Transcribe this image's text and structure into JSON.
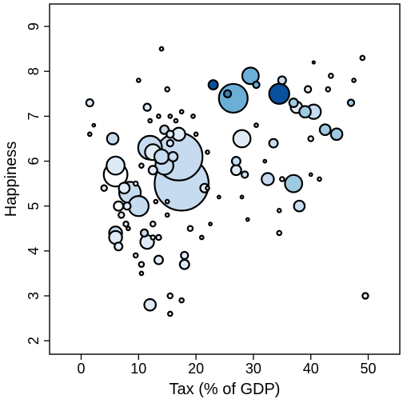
{
  "chart_data": {
    "type": "scatter",
    "title": "",
    "xlabel": "Tax (% of GDP)",
    "ylabel": "Happiness",
    "xlim": [
      -5.5,
      55.5
    ],
    "ylim": [
      1.7,
      9.5
    ],
    "xticks": [
      0,
      10,
      20,
      30,
      40,
      50
    ],
    "yticks": [
      2,
      3,
      4,
      5,
      6,
      7,
      8,
      9
    ],
    "grid": false,
    "legend": "none",
    "size_encoding": "bubble area",
    "color_scale": [
      "#deebf7",
      "#c6dbef",
      "#9ecae1",
      "#6baed6",
      "#3182bd",
      "#08519c"
    ],
    "points": [
      {
        "x": 1.5,
        "y": 7.3,
        "size": 1.0,
        "color": "#deebf7"
      },
      {
        "x": 1.5,
        "y": 6.6,
        "size": 0.5,
        "color": "#c6dbef"
      },
      {
        "x": 2.2,
        "y": 6.8,
        "size": 0.4,
        "color": "#deebf7"
      },
      {
        "x": 5.5,
        "y": 6.5,
        "size": 1.6,
        "color": "#c6dbef"
      },
      {
        "x": 6.0,
        "y": 5.9,
        "size": 2.5,
        "color": "#deebf7"
      },
      {
        "x": 6.0,
        "y": 5.7,
        "size": 3.3,
        "color": "#ffffff"
      },
      {
        "x": 4.0,
        "y": 5.4,
        "size": 0.8,
        "color": "#deebf7"
      },
      {
        "x": 6.5,
        "y": 5.0,
        "size": 1.3,
        "color": "#ffffff"
      },
      {
        "x": 7.0,
        "y": 4.8,
        "size": 0.8,
        "color": "#deebf7"
      },
      {
        "x": 6.0,
        "y": 4.4,
        "size": 1.8,
        "color": "#c6dbef"
      },
      {
        "x": 6.0,
        "y": 4.3,
        "size": 1.8,
        "color": "#deebf7"
      },
      {
        "x": 6.5,
        "y": 4.1,
        "size": 1.1,
        "color": "#deebf7"
      },
      {
        "x": 7.5,
        "y": 5.4,
        "size": 1.5,
        "color": "#deebf7"
      },
      {
        "x": 8.5,
        "y": 5.3,
        "size": 3.0,
        "color": "#c6dbef"
      },
      {
        "x": 8.0,
        "y": 5.0,
        "size": 1.0,
        "color": "#deebf7"
      },
      {
        "x": 7.8,
        "y": 4.6,
        "size": 0.7,
        "color": "#deebf7"
      },
      {
        "x": 8.2,
        "y": 4.5,
        "size": 0.5,
        "color": "#c6dbef"
      },
      {
        "x": 10.0,
        "y": 5.0,
        "size": 2.8,
        "color": "#c6dbef"
      },
      {
        "x": 9.5,
        "y": 3.9,
        "size": 0.6,
        "color": "#c6dbef"
      },
      {
        "x": 10.5,
        "y": 3.7,
        "size": 0.7,
        "color": "#deebf7"
      },
      {
        "x": 10.5,
        "y": 3.5,
        "size": 0.5,
        "color": "#deebf7"
      },
      {
        "x": 11.0,
        "y": 4.4,
        "size": 1.0,
        "color": "#c6dbef"
      },
      {
        "x": 11.5,
        "y": 4.2,
        "size": 1.9,
        "color": "#deebf7"
      },
      {
        "x": 12.0,
        "y": 2.8,
        "size": 1.6,
        "color": "#deebf7"
      },
      {
        "x": 12.0,
        "y": 6.3,
        "size": 3.3,
        "color": "#c6dbef"
      },
      {
        "x": 12.5,
        "y": 6.2,
        "size": 2.2,
        "color": "#deebf7"
      },
      {
        "x": 12.5,
        "y": 5.8,
        "size": 1.2,
        "color": "#deebf7"
      },
      {
        "x": 12.5,
        "y": 4.6,
        "size": 0.7,
        "color": "#deebf7"
      },
      {
        "x": 12.5,
        "y": 4.3,
        "size": 0.6,
        "color": "#deebf7"
      },
      {
        "x": 13.5,
        "y": 3.8,
        "size": 1.2,
        "color": "#deebf7"
      },
      {
        "x": 13.5,
        "y": 4.3,
        "size": 0.7,
        "color": "#deebf7"
      },
      {
        "x": 14.0,
        "y": 6.1,
        "size": 2.0,
        "color": "#c6dbef"
      },
      {
        "x": 14.5,
        "y": 5.9,
        "size": 2.5,
        "color": "#c6dbef"
      },
      {
        "x": 14.5,
        "y": 6.7,
        "size": 1.2,
        "color": "#c6dbef"
      },
      {
        "x": 15.5,
        "y": 6.6,
        "size": 1.0,
        "color": "#deebf7"
      },
      {
        "x": 15.5,
        "y": 6.4,
        "size": 0.9,
        "color": "#deebf7"
      },
      {
        "x": 15.0,
        "y": 5.1,
        "size": 0.5,
        "color": "#deebf7"
      },
      {
        "x": 15.0,
        "y": 4.8,
        "size": 0.5,
        "color": "#c6dbef"
      },
      {
        "x": 15.5,
        "y": 3.0,
        "size": 0.7,
        "color": "#deebf7"
      },
      {
        "x": 15.5,
        "y": 2.6,
        "size": 0.6,
        "color": "#deebf7"
      },
      {
        "x": 17.0,
        "y": 6.1,
        "size": 6.6,
        "color": "#c6dbef"
      },
      {
        "x": 17.5,
        "y": 5.5,
        "size": 7.5,
        "color": "#c6dbef"
      },
      {
        "x": 16.0,
        "y": 6.1,
        "size": 1.3,
        "color": "#c6dbef"
      },
      {
        "x": 17.0,
        "y": 6.6,
        "size": 1.8,
        "color": "#deebf7"
      },
      {
        "x": 17.5,
        "y": 2.9,
        "size": 0.6,
        "color": "#deebf7"
      },
      {
        "x": 18.0,
        "y": 3.9,
        "size": 1.0,
        "color": "#deebf7"
      },
      {
        "x": 18.0,
        "y": 3.7,
        "size": 1.3,
        "color": "#deebf7"
      },
      {
        "x": 19.0,
        "y": 4.5,
        "size": 0.7,
        "color": "#deebf7"
      },
      {
        "x": 20.0,
        "y": 6.6,
        "size": 0.5,
        "color": "#deebf7"
      },
      {
        "x": 21.5,
        "y": 5.4,
        "size": 1.2,
        "color": "#deebf7"
      },
      {
        "x": 22.0,
        "y": 5.4,
        "size": 0.5,
        "color": "#deebf7"
      },
      {
        "x": 21.0,
        "y": 4.3,
        "size": 0.5,
        "color": "#deebf7"
      },
      {
        "x": 22.5,
        "y": 4.6,
        "size": 0.4,
        "color": "#deebf7"
      },
      {
        "x": 22.0,
        "y": 6.2,
        "size": 0.5,
        "color": "#deebf7"
      },
      {
        "x": 23.0,
        "y": 7.7,
        "size": 1.3,
        "color": "#08519c"
      },
      {
        "x": 24.0,
        "y": 5.2,
        "size": 0.4,
        "color": "#deebf7"
      },
      {
        "x": 25.5,
        "y": 7.5,
        "size": 1.0,
        "color": "#3182bd"
      },
      {
        "x": 26.5,
        "y": 7.4,
        "size": 4.0,
        "color": "#6baed6"
      },
      {
        "x": 27.0,
        "y": 6.0,
        "size": 1.2,
        "color": "#c6dbef"
      },
      {
        "x": 27.0,
        "y": 5.8,
        "size": 1.4,
        "color": "#deebf7"
      },
      {
        "x": 28.0,
        "y": 6.5,
        "size": 2.4,
        "color": "#deebf7"
      },
      {
        "x": 28.5,
        "y": 5.7,
        "size": 0.9,
        "color": "#c6dbef"
      },
      {
        "x": 28.0,
        "y": 5.2,
        "size": 0.4,
        "color": "#deebf7"
      },
      {
        "x": 29.5,
        "y": 7.9,
        "size": 2.3,
        "color": "#6baed6"
      },
      {
        "x": 30.5,
        "y": 7.7,
        "size": 0.9,
        "color": "#6baed6"
      },
      {
        "x": 29.0,
        "y": 4.7,
        "size": 0.4,
        "color": "#deebf7"
      },
      {
        "x": 30.5,
        "y": 6.8,
        "size": 0.5,
        "color": "#deebf7"
      },
      {
        "x": 32.0,
        "y": 6.0,
        "size": 0.4,
        "color": "#deebf7"
      },
      {
        "x": 32.5,
        "y": 5.6,
        "size": 1.7,
        "color": "#c6dbef"
      },
      {
        "x": 33.5,
        "y": 6.4,
        "size": 1.2,
        "color": "#c6dbef"
      },
      {
        "x": 34.5,
        "y": 7.5,
        "size": 2.8,
        "color": "#08519c"
      },
      {
        "x": 35.0,
        "y": 7.8,
        "size": 1.1,
        "color": "#c6dbef"
      },
      {
        "x": 34.5,
        "y": 4.9,
        "size": 0.5,
        "color": "#deebf7"
      },
      {
        "x": 34.5,
        "y": 4.4,
        "size": 0.6,
        "color": "#deebf7"
      },
      {
        "x": 35.0,
        "y": 5.6,
        "size": 0.6,
        "color": "#deebf7"
      },
      {
        "x": 37.0,
        "y": 5.5,
        "size": 2.4,
        "color": "#9ecae1"
      },
      {
        "x": 37.0,
        "y": 7.3,
        "size": 1.2,
        "color": "#9ecae1"
      },
      {
        "x": 37.5,
        "y": 7.2,
        "size": 1.6,
        "color": "#deebf7"
      },
      {
        "x": 38.0,
        "y": 5.0,
        "size": 1.5,
        "color": "#c6dbef"
      },
      {
        "x": 39.0,
        "y": 7.1,
        "size": 1.6,
        "color": "#9ecae1"
      },
      {
        "x": 39.5,
        "y": 7.6,
        "size": 0.9,
        "color": "#deebf7"
      },
      {
        "x": 40.5,
        "y": 7.1,
        "size": 2.0,
        "color": "#c6dbef"
      },
      {
        "x": 40.0,
        "y": 6.5,
        "size": 0.7,
        "color": "#deebf7"
      },
      {
        "x": 40.0,
        "y": 5.7,
        "size": 0.4,
        "color": "#deebf7"
      },
      {
        "x": 40.5,
        "y": 8.2,
        "size": 0.3,
        "color": "#deebf7"
      },
      {
        "x": 41.5,
        "y": 5.6,
        "size": 0.5,
        "color": "#deebf7"
      },
      {
        "x": 42.5,
        "y": 6.7,
        "size": 1.5,
        "color": "#9ecae1"
      },
      {
        "x": 43.5,
        "y": 7.9,
        "size": 0.6,
        "color": "#deebf7"
      },
      {
        "x": 43.0,
        "y": 7.6,
        "size": 0.6,
        "color": "#deebf7"
      },
      {
        "x": 44.5,
        "y": 6.6,
        "size": 1.6,
        "color": "#9ecae1"
      },
      {
        "x": 47.0,
        "y": 7.3,
        "size": 0.9,
        "color": "#9ecae1"
      },
      {
        "x": 47.5,
        "y": 7.8,
        "size": 0.5,
        "color": "#deebf7"
      },
      {
        "x": 49.0,
        "y": 8.3,
        "size": 0.6,
        "color": "#deebf7"
      },
      {
        "x": 49.5,
        "y": 3.0,
        "size": 0.8,
        "color": "#deebf7"
      },
      {
        "x": 10.0,
        "y": 7.8,
        "size": 0.5,
        "color": "#deebf7"
      },
      {
        "x": 11.5,
        "y": 7.2,
        "size": 1.0,
        "color": "#deebf7"
      },
      {
        "x": 12.0,
        "y": 6.9,
        "size": 0.5,
        "color": "#deebf7"
      },
      {
        "x": 13.5,
        "y": 7.0,
        "size": 0.5,
        "color": "#deebf7"
      },
      {
        "x": 14.0,
        "y": 8.5,
        "size": 0.5,
        "color": "#deebf7"
      },
      {
        "x": 15.0,
        "y": 7.6,
        "size": 0.6,
        "color": "#deebf7"
      },
      {
        "x": 15.5,
        "y": 7.0,
        "size": 0.5,
        "color": "#deebf7"
      },
      {
        "x": 16.5,
        "y": 6.9,
        "size": 0.5,
        "color": "#deebf7"
      },
      {
        "x": 17.5,
        "y": 7.1,
        "size": 0.5,
        "color": "#deebf7"
      },
      {
        "x": 19.5,
        "y": 7.0,
        "size": 0.5,
        "color": "#deebf7"
      },
      {
        "x": 10.5,
        "y": 5.9,
        "size": 0.6,
        "color": "#deebf7"
      },
      {
        "x": 9.5,
        "y": 5.5,
        "size": 0.6,
        "color": "#deebf7"
      },
      {
        "x": 13.0,
        "y": 5.1,
        "size": 0.5,
        "color": "#deebf7"
      }
    ]
  }
}
